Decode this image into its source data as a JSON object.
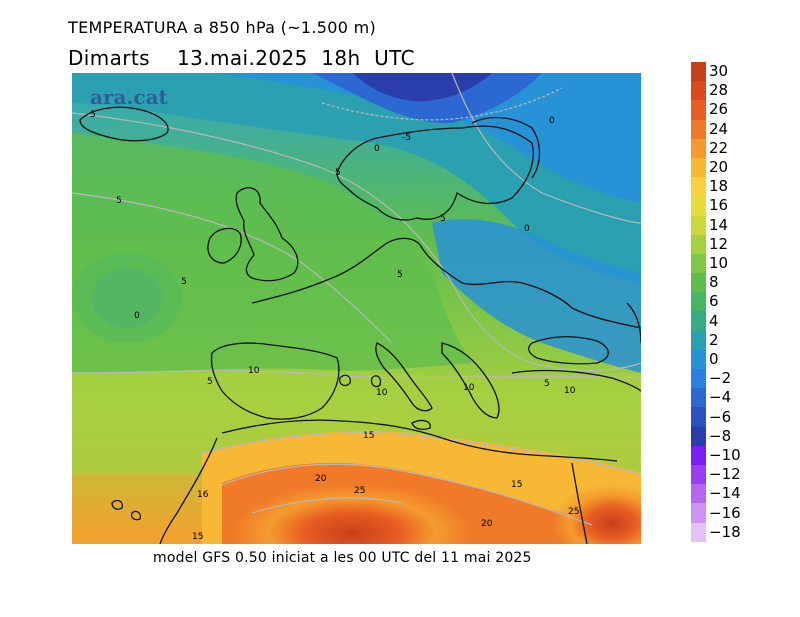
{
  "title": "TEMPERATURA a 850 hPa (~1.500 m)",
  "subtitle": "Dimarts    13.mai.2025  18h  UTC",
  "footer": "model GFS 0.50 iniciat a les 00 UTC del 11 mai 2025",
  "logo": "ara.cat",
  "legend": {
    "items": [
      {
        "label": "30",
        "color": "#c8401b"
      },
      {
        "label": "28",
        "color": "#db4a1d"
      },
      {
        "label": "26",
        "color": "#e85d22"
      },
      {
        "label": "24",
        "color": "#f07a27"
      },
      {
        "label": "22",
        "color": "#f59b2e"
      },
      {
        "label": "20",
        "color": "#f7b835"
      },
      {
        "label": "18",
        "color": "#f7d23c"
      },
      {
        "label": "16",
        "color": "#e8dc3d"
      },
      {
        "label": "14",
        "color": "#c9d83c"
      },
      {
        "label": "12",
        "color": "#a6d040"
      },
      {
        "label": "10",
        "color": "#82c645"
      },
      {
        "label": "8",
        "color": "#5fbd4d"
      },
      {
        "label": "6",
        "color": "#47b664"
      },
      {
        "label": "4",
        "color": "#36ab84"
      },
      {
        "label": "2",
        "color": "#2ba0b0"
      },
      {
        "label": "0",
        "color": "#2892d6"
      },
      {
        "label": "-2",
        "color": "#2a7fe0"
      },
      {
        "label": "-4",
        "color": "#2b68d2"
      },
      {
        "label": "-6",
        "color": "#2a52bf"
      },
      {
        "label": "-8",
        "color": "#2a3eaa"
      },
      {
        "label": "-10",
        "color": "#7a1ff0"
      },
      {
        "label": "-12",
        "color": "#9a3ff0"
      },
      {
        "label": "-14",
        "color": "#b467ef"
      },
      {
        "label": "-16",
        "color": "#cc93f0"
      },
      {
        "label": "-18",
        "color": "#e2c4f4"
      }
    ]
  },
  "contour_labels": [
    "5",
    "0",
    "-5",
    "0",
    "5",
    "5",
    "5",
    "0",
    "5",
    "5",
    "0",
    "5",
    "10",
    "10",
    "10",
    "5",
    "10",
    "15",
    "20",
    "25",
    "15",
    "16",
    "15",
    "20",
    "25"
  ]
}
